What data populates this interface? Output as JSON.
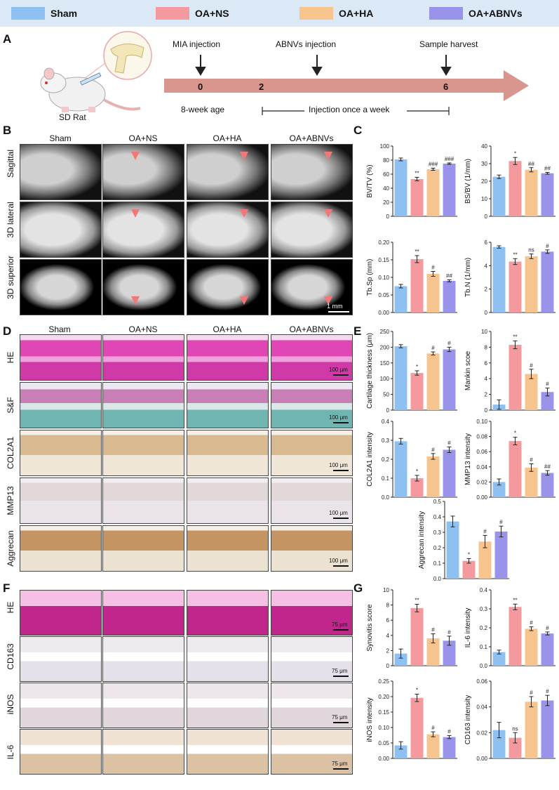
{
  "legend": {
    "items": [
      {
        "label": "Sham",
        "color": "#8fc0f2"
      },
      {
        "label": "OA+NS",
        "color": "#f4999e"
      },
      {
        "label": "OA+HA",
        "color": "#f7c48d"
      },
      {
        "label": "OA+ABNVs",
        "color": "#9a93ea"
      }
    ]
  },
  "panelA": {
    "letter": "A",
    "rat_label": "SD Rat",
    "events": [
      {
        "label": "MIA injection",
        "tick": "0"
      },
      {
        "label": "",
        "tick": "2"
      },
      {
        "label": "ABNVs injection",
        "tick": ""
      },
      {
        "label": "Sample harvest",
        "tick": "6"
      }
    ],
    "age_label": "8-week age",
    "interval_label": "Injection once a week"
  },
  "panelB": {
    "letter": "B",
    "columns": [
      "Sham",
      "OA+NS",
      "OA+HA",
      "OA+ABNVs"
    ],
    "rows": [
      "Sagittal",
      "3D lateral",
      "3D superior"
    ],
    "scale": "1 mm"
  },
  "panelD": {
    "letter": "D",
    "columns": [
      "Sham",
      "OA+NS",
      "OA+HA",
      "OA+ABNVs"
    ],
    "rows": [
      "HE",
      "S&F",
      "COL2A1",
      "MMP13",
      "Aggrecan"
    ],
    "scale": "100 μm"
  },
  "panelF": {
    "letter": "F",
    "rows": [
      "HE",
      "CD163",
      "iNOS",
      "IL-6"
    ],
    "scale": "75 μm"
  },
  "panelC": {
    "letter": "C"
  },
  "panelE": {
    "letter": "E"
  },
  "panelG": {
    "letter": "G"
  },
  "chart_data": [
    {
      "type": "bar",
      "panel": "C",
      "ylabel": "BV/TV (%)",
      "ylim": [
        0,
        100
      ],
      "ticks": [
        0,
        20,
        40,
        60,
        80,
        100
      ],
      "values": [
        81,
        53,
        67,
        75
      ],
      "errors": [
        2,
        2.5,
        1.5,
        1
      ],
      "sig": [
        "",
        "**",
        "###",
        "###"
      ]
    },
    {
      "type": "bar",
      "panel": "C",
      "ylabel": "BS/BV (1/mm)",
      "ylim": [
        0,
        40
      ],
      "ticks": [
        0,
        10,
        20,
        30,
        40
      ],
      "values": [
        22.5,
        31.5,
        26.5,
        24.5
      ],
      "errors": [
        1,
        2,
        1.2,
        0.5
      ],
      "sig": [
        "",
        "*",
        "##",
        "##"
      ]
    },
    {
      "type": "bar",
      "panel": "C",
      "ylabel": "Tb.Sp (mm)",
      "ylim": [
        0,
        0.2
      ],
      "ticks": [
        "0.00",
        "0.05",
        "0.10",
        "0.15",
        "0.20"
      ],
      "values": [
        0.075,
        0.152,
        0.11,
        0.09
      ],
      "errors": [
        0.005,
        0.01,
        0.007,
        0.003
      ],
      "sig": [
        "",
        "**",
        "#",
        "##"
      ]
    },
    {
      "type": "bar",
      "panel": "C",
      "ylabel": "Tb.N (1/mm)",
      "ylim": [
        0,
        6
      ],
      "ticks": [
        0,
        2,
        4,
        6
      ],
      "values": [
        5.6,
        4.35,
        4.8,
        5.2
      ],
      "errors": [
        0.1,
        0.25,
        0.2,
        0.15
      ],
      "sig": [
        "",
        "**",
        "ns",
        "#"
      ]
    },
    {
      "type": "bar",
      "panel": "E",
      "ylabel": "Cartilage thickness (μm)",
      "ylim": [
        0,
        250
      ],
      "ticks": [
        0,
        50,
        100,
        150,
        200,
        250
      ],
      "values": [
        203,
        118,
        180,
        193
      ],
      "errors": [
        5,
        7,
        5,
        7
      ],
      "sig": [
        "",
        "*",
        "#",
        "#"
      ]
    },
    {
      "type": "bar",
      "panel": "E",
      "ylabel": "Mankin scoe",
      "ylim": [
        0,
        10
      ],
      "ticks": [
        0,
        2,
        4,
        6,
        8,
        10
      ],
      "values": [
        0.7,
        8.3,
        4.6,
        2.3
      ],
      "errors": [
        0.6,
        0.5,
        0.6,
        0.5
      ],
      "sig": [
        "",
        "**",
        "#",
        "#"
      ]
    },
    {
      "type": "bar",
      "panel": "E",
      "ylabel": "COL2A1 intensity",
      "ylim": [
        0,
        0.4
      ],
      "ticks": [
        "0.0",
        "0.1",
        "0.2",
        "0.3",
        "0.4"
      ],
      "values": [
        0.295,
        0.1,
        0.215,
        0.25
      ],
      "errors": [
        0.015,
        0.015,
        0.015,
        0.015
      ],
      "sig": [
        "",
        "*",
        "#",
        "#"
      ]
    },
    {
      "type": "bar",
      "panel": "E",
      "ylabel": "MMP13 intensity",
      "ylim": [
        0,
        0.1
      ],
      "ticks": [
        "0.00",
        "0.02",
        "0.04",
        "0.06",
        "0.08",
        "0.10"
      ],
      "values": [
        0.02,
        0.074,
        0.039,
        0.032
      ],
      "errors": [
        0.004,
        0.005,
        0.005,
        0.003
      ],
      "sig": [
        "",
        "*",
        "#",
        "##"
      ]
    },
    {
      "type": "bar",
      "panel": "E",
      "ylabel": "Aggrecan intensity",
      "ylim": [
        0,
        0.5
      ],
      "ticks": [
        "0.0",
        "0.1",
        "0.2",
        "0.3",
        "0.4",
        "0.5"
      ],
      "values": [
        0.37,
        0.115,
        0.24,
        0.305
      ],
      "errors": [
        0.035,
        0.015,
        0.04,
        0.035
      ],
      "sig": [
        "",
        "*",
        "#",
        "#"
      ]
    },
    {
      "type": "bar",
      "panel": "G",
      "ylabel": "Synovitis score",
      "ylim": [
        0,
        10
      ],
      "ticks": [
        0,
        2,
        4,
        6,
        8,
        10
      ],
      "values": [
        1.6,
        7.6,
        3.6,
        3.3
      ],
      "errors": [
        0.6,
        0.5,
        0.6,
        0.6
      ],
      "sig": [
        "",
        "**",
        "#",
        "#"
      ]
    },
    {
      "type": "bar",
      "panel": "G",
      "ylabel": "IL-6 intensity",
      "ylim": [
        0,
        0.4
      ],
      "ticks": [
        "0.0",
        "0.1",
        "0.2",
        "0.3",
        "0.4"
      ],
      "values": [
        0.072,
        0.31,
        0.195,
        0.17
      ],
      "errors": [
        0.01,
        0.015,
        0.01,
        0.008
      ],
      "sig": [
        "",
        "**",
        "#",
        "#"
      ]
    },
    {
      "type": "bar",
      "panel": "G",
      "ylabel": "iNOS intensity",
      "ylim": [
        0,
        0.25
      ],
      "ticks": [
        "0.00",
        "0.05",
        "0.10",
        "0.15",
        "0.20",
        "0.25"
      ],
      "values": [
        0.042,
        0.196,
        0.078,
        0.069
      ],
      "errors": [
        0.012,
        0.012,
        0.008,
        0.005
      ],
      "sig": [
        "",
        "*",
        "#",
        "#"
      ]
    },
    {
      "type": "bar",
      "panel": "G",
      "ylabel": "CD163 intensity",
      "ylim": [
        0,
        0.06
      ],
      "ticks": [
        "0.00",
        "0.02",
        "0.04",
        "0.06"
      ],
      "values": [
        0.022,
        0.016,
        0.044,
        0.045
      ],
      "errors": [
        0.006,
        0.004,
        0.004,
        0.004
      ],
      "sig": [
        "",
        "ns",
        "#",
        "#"
      ]
    }
  ]
}
